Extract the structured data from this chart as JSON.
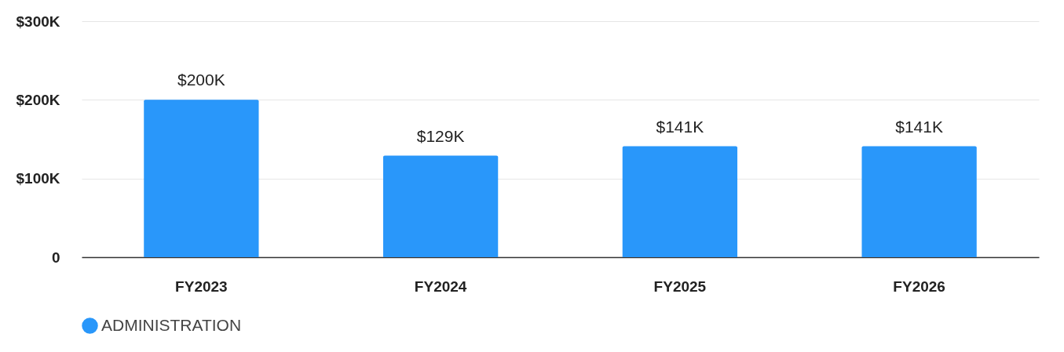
{
  "chart_data": {
    "type": "bar",
    "categories": [
      "FY2023",
      "FY2024",
      "FY2025",
      "FY2026"
    ],
    "series": [
      {
        "name": "ADMINISTRATION",
        "color": "#2997fa",
        "values": [
          200000,
          129000,
          141000,
          141000
        ],
        "value_labels": [
          "$200K",
          "$129K",
          "$141K",
          "$141K"
        ]
      }
    ],
    "ylim": [
      0,
      300000
    ],
    "yticks": [
      {
        "value": 0,
        "label": "0"
      },
      {
        "value": 100000,
        "label": "$100K"
      },
      {
        "value": 200000,
        "label": "$200K"
      },
      {
        "value": 300000,
        "label": "$300K"
      }
    ],
    "grid": "y",
    "legend": "bottom"
  }
}
